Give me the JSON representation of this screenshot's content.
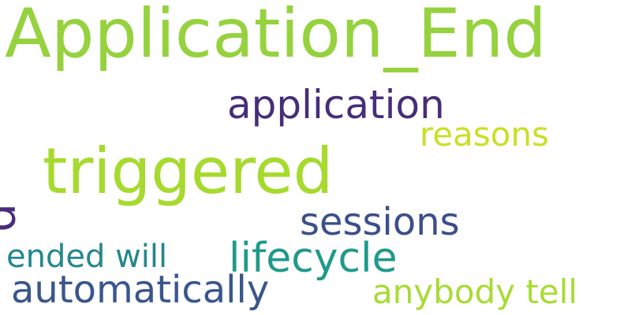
{
  "wordcloud": {
    "words": [
      {
        "text": "Application_End",
        "color": "#95D23E"
      },
      {
        "text": "application",
        "color": "#462E7A"
      },
      {
        "text": "triggered",
        "color": "#A6DA2E"
      },
      {
        "text": "reasons",
        "color": "#C9E026"
      },
      {
        "text": "sessions",
        "color": "#3C4F8A"
      },
      {
        "text": "lifecycle",
        "color": "#1F9A8A"
      },
      {
        "text": "ended will",
        "color": "#24878E"
      },
      {
        "text": "automatically",
        "color": "#39568C"
      },
      {
        "text": "anybody tell",
        "color": "#A8DB34"
      },
      {
        "text": "p",
        "color": "#472D7B"
      }
    ]
  }
}
